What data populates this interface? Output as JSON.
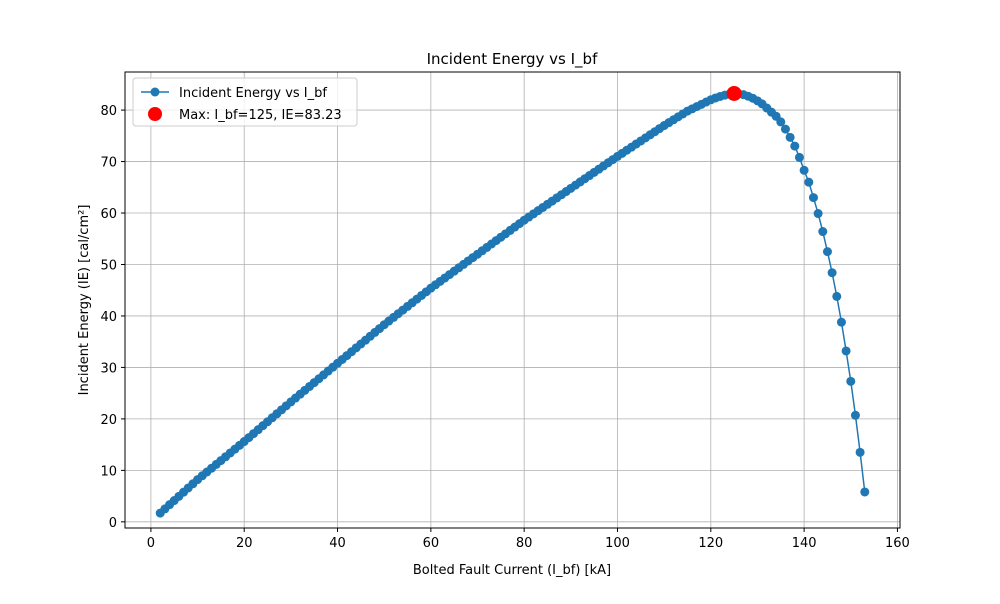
{
  "chart_data": {
    "type": "line",
    "title": "Incident Energy vs I_bf",
    "x_label": "Bolted Fault Current (I_bf) [kA]",
    "y_label": "Incident Energy (IE) [cal/cm²]",
    "xlim": [
      -5.55,
      160.55
    ],
    "ylim": [
      -1.2,
      87.4
    ],
    "xticks": [
      0,
      20,
      40,
      60,
      80,
      100,
      120,
      140,
      160
    ],
    "yticks": [
      0,
      10,
      20,
      30,
      40,
      50,
      60,
      70,
      80
    ],
    "grid": true,
    "legend": "upper left",
    "series": [
      {
        "name": "Incident Energy vs I_bf",
        "color": "#1f77b4",
        "marker": "circle",
        "x": [
          2,
          3,
          4,
          5,
          6,
          7,
          8,
          9,
          10,
          11,
          12,
          13,
          14,
          15,
          16,
          17,
          18,
          19,
          20,
          21,
          22,
          23,
          24,
          25,
          26,
          27,
          28,
          29,
          30,
          31,
          32,
          33,
          34,
          35,
          36,
          37,
          38,
          39,
          40,
          41,
          42,
          43,
          44,
          45,
          46,
          47,
          48,
          49,
          50,
          51,
          52,
          53,
          54,
          55,
          56,
          57,
          58,
          59,
          60,
          61,
          62,
          63,
          64,
          65,
          66,
          67,
          68,
          69,
          70,
          71,
          72,
          73,
          74,
          75,
          76,
          77,
          78,
          79,
          80,
          81,
          82,
          83,
          84,
          85,
          86,
          87,
          88,
          89,
          90,
          91,
          92,
          93,
          94,
          95,
          96,
          97,
          98,
          99,
          100,
          101,
          102,
          103,
          104,
          105,
          106,
          107,
          108,
          109,
          110,
          111,
          112,
          113,
          114,
          115,
          116,
          117,
          118,
          119,
          120,
          121,
          122,
          123,
          124,
          125,
          126,
          127,
          128,
          129,
          130,
          131,
          132,
          133,
          134,
          135,
          136,
          137,
          138,
          139,
          140,
          141,
          142,
          143,
          144,
          145,
          146,
          147,
          148,
          149,
          150,
          151,
          152,
          153
        ],
        "values": [
          1.7,
          2.51,
          3.33,
          4.14,
          4.95,
          5.76,
          6.58,
          7.39,
          8.2,
          8.94,
          9.68,
          10.42,
          11.16,
          11.9,
          12.64,
          13.38,
          14.12,
          14.86,
          15.6,
          16.37,
          17.14,
          17.91,
          18.68,
          19.45,
          20.22,
          20.99,
          21.76,
          22.53,
          23.3,
          24.05,
          24.8,
          25.55,
          26.3,
          27.05,
          27.8,
          28.55,
          29.3,
          30.05,
          30.8,
          31.55,
          32.3,
          33.05,
          33.8,
          34.55,
          35.3,
          36.05,
          36.8,
          37.55,
          38.3,
          39.01,
          39.72,
          40.43,
          41.14,
          41.85,
          42.56,
          43.27,
          43.98,
          44.69,
          45.4,
          46.06,
          46.72,
          47.38,
          48.04,
          48.7,
          49.36,
          50.02,
          50.68,
          51.34,
          52.0,
          52.66,
          53.32,
          53.98,
          54.64,
          55.3,
          55.96,
          56.62,
          57.28,
          57.94,
          58.6,
          59.22,
          59.84,
          60.46,
          61.08,
          61.7,
          62.32,
          62.94,
          63.56,
          64.18,
          64.8,
          65.42,
          66.04,
          66.66,
          67.28,
          67.9,
          68.52,
          69.14,
          69.76,
          70.38,
          71.0,
          71.6,
          72.2,
          72.8,
          73.4,
          74.0,
          74.6,
          75.2,
          75.8,
          76.4,
          77.0,
          77.56,
          78.12,
          78.68,
          79.24,
          79.8,
          80.24,
          80.68,
          81.12,
          81.56,
          82.0,
          82.35,
          82.65,
          82.9,
          83.1,
          83.23,
          83.15,
          83.0,
          82.7,
          82.3,
          81.8,
          81.2,
          80.4,
          79.6,
          78.8,
          77.7,
          76.3,
          74.7,
          73.0,
          70.8,
          68.3,
          66.0,
          63.0,
          59.9,
          56.4,
          52.5,
          48.4,
          43.8,
          38.8,
          33.2,
          27.3,
          20.7,
          13.5,
          5.8
        ]
      },
      {
        "name": "Max: I_bf=125, IE=83.23",
        "color": "#ff0000",
        "marker": "big-circle",
        "x": [
          125
        ],
        "values": [
          83.23
        ]
      }
    ]
  }
}
